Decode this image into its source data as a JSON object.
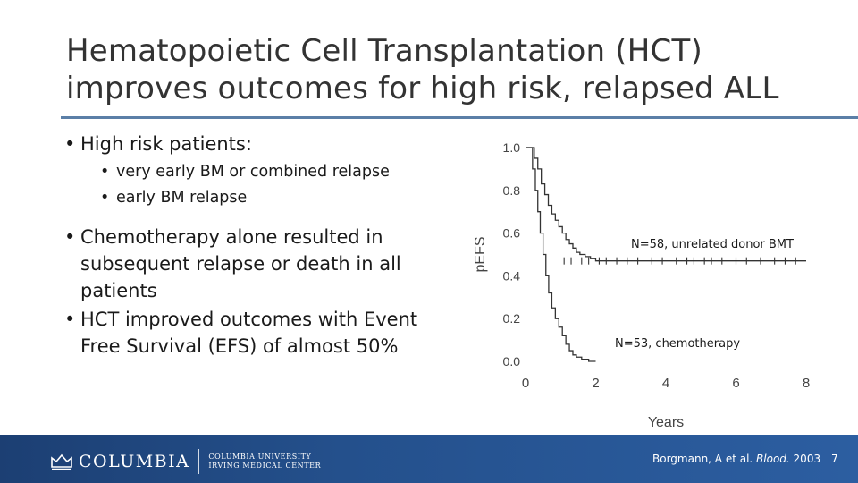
{
  "title": {
    "line1": "Hematopoietic Cell Transplantation (HCT)",
    "line2": "improves outcomes for high risk, relapsed ALL"
  },
  "bullets": {
    "b1": "High risk patients:",
    "b1_sub": [
      "very early BM or combined relapse",
      "early BM relapse"
    ],
    "b2": "Chemotherapy alone resulted in subsequent relapse or death in all patients",
    "b3": "HCT improved outcomes with Event Free Survival (EFS) of almost 50%"
  },
  "chart_data": {
    "type": "line",
    "xlabel": "Years",
    "ylabel": "pEFS",
    "xlim": [
      0,
      8
    ],
    "ylim": [
      0,
      1.0
    ],
    "x_ticks": [
      "0",
      "2",
      "4",
      "6",
      "8"
    ],
    "y_ticks": [
      "0.0",
      "0.2",
      "0.4",
      "0.6",
      "0.8",
      "1.0"
    ],
    "grid": false,
    "series": [
      {
        "name": "N=58, unrelated donor BMT",
        "points": [
          [
            0,
            1.0
          ],
          [
            0.2,
            1.0
          ],
          [
            0.25,
            0.95
          ],
          [
            0.35,
            0.9
          ],
          [
            0.45,
            0.83
          ],
          [
            0.55,
            0.78
          ],
          [
            0.65,
            0.73
          ],
          [
            0.75,
            0.69
          ],
          [
            0.85,
            0.66
          ],
          [
            0.95,
            0.63
          ],
          [
            1.05,
            0.6
          ],
          [
            1.15,
            0.57
          ],
          [
            1.25,
            0.55
          ],
          [
            1.35,
            0.53
          ],
          [
            1.45,
            0.51
          ],
          [
            1.55,
            0.5
          ],
          [
            1.7,
            0.49
          ],
          [
            1.85,
            0.48
          ],
          [
            2.0,
            0.47
          ],
          [
            2.5,
            0.47
          ],
          [
            8.0,
            0.47
          ]
        ],
        "censor_x": [
          1.1,
          1.3,
          1.6,
          1.8,
          2.1,
          2.3,
          2.6,
          2.9,
          3.2,
          3.6,
          3.9,
          4.3,
          4.6,
          4.8,
          5.1,
          5.3,
          5.6,
          6.0,
          6.3,
          6.7,
          7.1,
          7.4,
          7.7
        ]
      },
      {
        "name": "N=53, chemotherapy",
        "points": [
          [
            0,
            1.0
          ],
          [
            0.15,
            1.0
          ],
          [
            0.2,
            0.9
          ],
          [
            0.28,
            0.8
          ],
          [
            0.35,
            0.7
          ],
          [
            0.42,
            0.6
          ],
          [
            0.5,
            0.5
          ],
          [
            0.58,
            0.4
          ],
          [
            0.66,
            0.32
          ],
          [
            0.75,
            0.25
          ],
          [
            0.85,
            0.2
          ],
          [
            0.95,
            0.16
          ],
          [
            1.05,
            0.12
          ],
          [
            1.15,
            0.08
          ],
          [
            1.25,
            0.05
          ],
          [
            1.35,
            0.03
          ],
          [
            1.45,
            0.02
          ],
          [
            1.6,
            0.01
          ],
          [
            1.8,
            0.0
          ],
          [
            2.0,
            0.0
          ]
        ],
        "censor_x": []
      }
    ]
  },
  "footer": {
    "logo_text": "COLUMBIA",
    "cu_line1": "COLUMBIA UNIVERSITY",
    "cu_line2": "IRVING MEDICAL CENTER",
    "citation_pre": "Borgmann, A et al. ",
    "citation_journal": "Blood.",
    "citation_year": " 2003",
    "page": "7"
  }
}
